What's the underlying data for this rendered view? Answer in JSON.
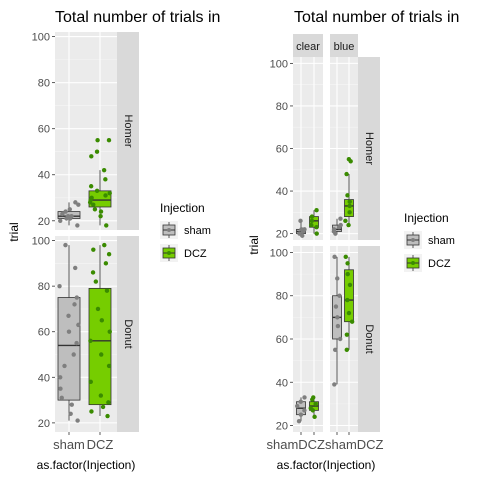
{
  "chart_data": [
    {
      "type": "boxplot",
      "title": "Total number of trials in",
      "xlabel": "as.factor(Injection)",
      "ylabel": "trial",
      "categories": [
        "sham",
        "DCZ"
      ],
      "facets": [
        "Homer",
        "Donut"
      ],
      "ylim": {
        "Homer": [
          16,
          102
        ],
        "Donut": [
          16,
          102
        ]
      },
      "yticks": [
        20,
        40,
        60,
        80,
        100
      ],
      "legend": {
        "title": "Injection",
        "position": "right",
        "entries": [
          "sham",
          "DCZ"
        ]
      },
      "colors": {
        "sham": "#bebebe",
        "DCZ": "#76cd00",
        "sham_point": "#7f7f7f",
        "DCZ_point": "#3a8b00"
      },
      "panels": [
        {
          "facet": "Homer",
          "boxes": [
            {
              "group": "sham",
              "stats": [
                18,
                21,
                22,
                24,
                28
              ],
              "points": [
                18,
                20,
                21,
                21,
                22,
                22,
                23,
                24,
                25,
                27,
                28
              ]
            },
            {
              "group": "DCZ",
              "stats": [
                18,
                26,
                29,
                33,
                42
              ],
              "points": [
                18,
                22,
                24,
                25,
                27,
                28,
                29,
                30,
                31,
                32,
                33,
                35,
                38,
                42,
                48,
                50,
                55,
                55
              ]
            }
          ]
        },
        {
          "facet": "Donut",
          "boxes": [
            {
              "group": "sham",
              "stats": [
                21,
                30,
                54,
                75,
                98
              ],
              "points": [
                21,
                24,
                28,
                31,
                35,
                40,
                45,
                50,
                55,
                60,
                63,
                67,
                72,
                75,
                80,
                88,
                98
              ]
            },
            {
              "group": "DCZ",
              "stats": [
                23,
                28,
                56,
                79,
                98
              ],
              "points": [
                23,
                25,
                27,
                29,
                32,
                38,
                45,
                50,
                56,
                60,
                65,
                70,
                78,
                82,
                86,
                90,
                94,
                96,
                98
              ]
            }
          ]
        }
      ]
    },
    {
      "type": "boxplot",
      "title": "Total number of trials in",
      "xlabel": "as.factor(Injection)",
      "ylabel": "trial",
      "categories": [
        "sham",
        "DCZ"
      ],
      "column_facets": [
        "clear",
        "blue"
      ],
      "facets": [
        "Homer",
        "Donut"
      ],
      "tick_text": [
        "shamDCZshamDCZ"
      ],
      "ylim": {
        "Homer": [
          17,
          103
        ],
        "Donut": [
          17,
          103
        ]
      },
      "yticks": [
        20,
        40,
        60,
        80,
        100
      ],
      "legend": {
        "title": "Injection",
        "position": "right",
        "entries": [
          "sham",
          "DCZ"
        ]
      },
      "colors": {
        "sham": "#bebebe",
        "DCZ": "#76cd00",
        "sham_point": "#7f7f7f",
        "DCZ_point": "#3a8b00"
      },
      "panels": [
        {
          "facet": "Homer",
          "column": "clear",
          "boxes": [
            {
              "group": "sham",
              "stats": [
                19,
                20,
                21,
                22,
                26
              ],
              "points": [
                19,
                20,
                21,
                22,
                22,
                26
              ]
            },
            {
              "group": "DCZ",
              "stats": [
                20,
                23,
                26,
                28,
                31
              ],
              "points": [
                20,
                23,
                24,
                26,
                28,
                31
              ]
            }
          ]
        },
        {
          "facet": "Homer",
          "column": "blue",
          "boxes": [
            {
              "group": "sham",
              "stats": [
                20,
                21,
                22,
                24,
                27
              ],
              "points": [
                20,
                21,
                22,
                23,
                24,
                27
              ]
            },
            {
              "group": "DCZ",
              "stats": [
                24,
                28,
                33,
                36,
                48
              ],
              "points": [
                24,
                26,
                30,
                33,
                35,
                38,
                48,
                54,
                55
              ]
            }
          ]
        },
        {
          "facet": "Donut",
          "column": "clear",
          "boxes": [
            {
              "group": "sham",
              "stats": [
                22,
                25,
                28,
                31,
                33
              ],
              "points": [
                22,
                25,
                27,
                29,
                31,
                33
              ]
            },
            {
              "group": "DCZ",
              "stats": [
                24,
                27,
                29,
                31,
                33
              ],
              "points": [
                24,
                27,
                28,
                30,
                32,
                33
              ]
            }
          ]
        },
        {
          "facet": "Donut",
          "column": "blue",
          "boxes": [
            {
              "group": "sham",
              "stats": [
                39,
                60,
                70,
                80,
                98
              ],
              "points": [
                39,
                55,
                60,
                66,
                70,
                75,
                80,
                88,
                98
              ]
            },
            {
              "group": "DCZ",
              "stats": [
                55,
                68,
                78,
                92,
                98
              ],
              "points": [
                55,
                62,
                68,
                72,
                78,
                85,
                90,
                95,
                98
              ]
            }
          ]
        }
      ]
    }
  ]
}
